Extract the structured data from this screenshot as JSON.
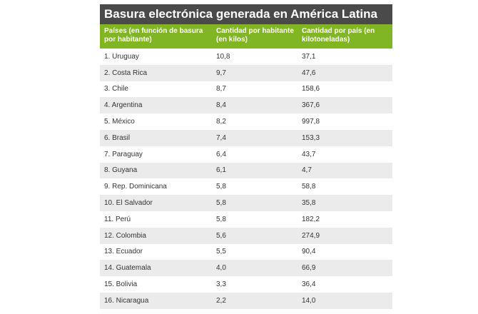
{
  "title": "Basura electrónica generada en América Latina",
  "colors": {
    "title_background": "#4a4a4a",
    "header_background": "#80b624",
    "stripe": "#ebebeb"
  },
  "headers": [
    "Países (en función de basura por habitante)",
    "Cantidad por habitante (en kilos)",
    "Cantidad por país (en kilotoneladas)"
  ],
  "rows": [
    [
      "1. Uruguay",
      "10,8",
      "37,1"
    ],
    [
      "2. Costa Rica",
      "9,7",
      "47,6"
    ],
    [
      "3. Chile",
      "8,7",
      "158,6"
    ],
    [
      "4. Argentina",
      "8,4",
      "367,6"
    ],
    [
      "5. México",
      "8,2",
      "997,8"
    ],
    [
      "6. Brasil",
      "7,4",
      "153,3"
    ],
    [
      "7. Paraguay",
      "6,4",
      "43,7"
    ],
    [
      "8. Guyana",
      "6,1",
      "4,7"
    ],
    [
      "9. Rep. Dominicana",
      "5,8",
      "58,8"
    ],
    [
      "10. El Salvador",
      "5,8",
      "35,8"
    ],
    [
      "11. Perú",
      "5,8",
      "182,2"
    ],
    [
      "12. Colombia",
      "5,6",
      "274,9"
    ],
    [
      "13. Ecuador",
      "5,5",
      "90,4"
    ],
    [
      "14. Guatemala",
      "4,0",
      "66,9"
    ],
    [
      "15. Bolivia",
      "3,3",
      "36,4"
    ],
    [
      "16. Nicaragua",
      "2,2",
      "14,0"
    ]
  ]
}
